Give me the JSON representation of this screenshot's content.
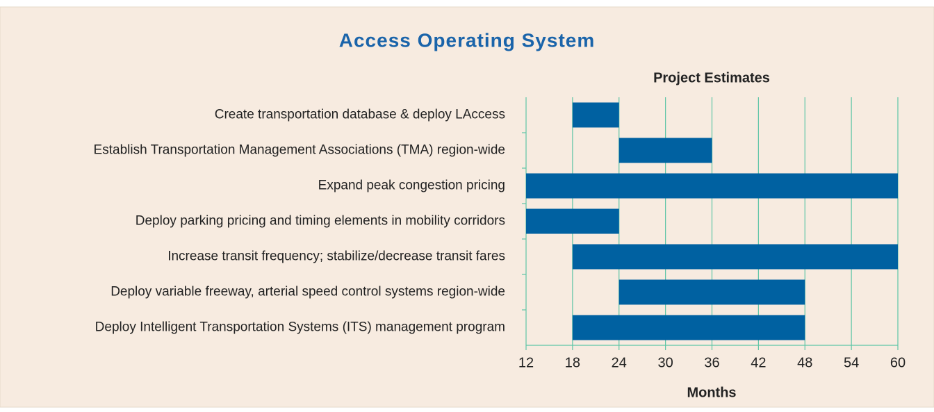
{
  "chart_data": {
    "type": "gantt",
    "title": "Access Operating System",
    "subtitle": "Project Estimates",
    "x_label": "Months",
    "categories": [
      "Create transportation database & deploy LAccess",
      "Establish Transportation Management Associations (TMA) region-wide",
      "Expand peak congestion pricing",
      "Deploy parking pricing and timing elements in mobility corridors",
      "Increase transit frequency; stabilize/decrease transit fares",
      "Deploy variable freeway, arterial speed control systems region-wide",
      "Deploy Intelligent Transportation Systems (ITS) management program"
    ],
    "start": [
      18,
      24,
      12,
      12,
      18,
      24,
      18
    ],
    "end": [
      24,
      36,
      60,
      24,
      60,
      48,
      48
    ],
    "color": "#0061a1",
    "grid": true,
    "grid_color": "#5ec5a6",
    "xlim": [
      12,
      60
    ],
    "xticks": [
      12,
      18,
      24,
      30,
      36,
      42,
      48,
      54,
      60
    ]
  }
}
